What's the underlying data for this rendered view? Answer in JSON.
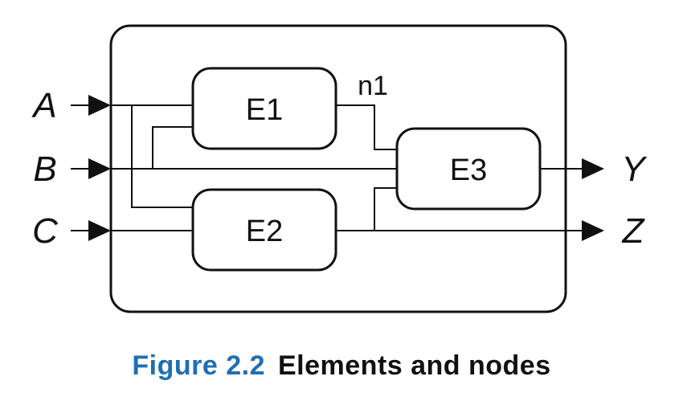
{
  "diagram": {
    "inputs": [
      "A",
      "B",
      "C"
    ],
    "outputs": [
      "Y",
      "Z"
    ],
    "elements": [
      "E1",
      "E2",
      "E3"
    ],
    "node_label": "n1",
    "colors": {
      "stroke": "#111111",
      "fill": "#ffffff",
      "caption_accent": "#1f6fb3"
    }
  },
  "caption": {
    "number": "Figure 2.2",
    "title": "Elements and nodes"
  }
}
